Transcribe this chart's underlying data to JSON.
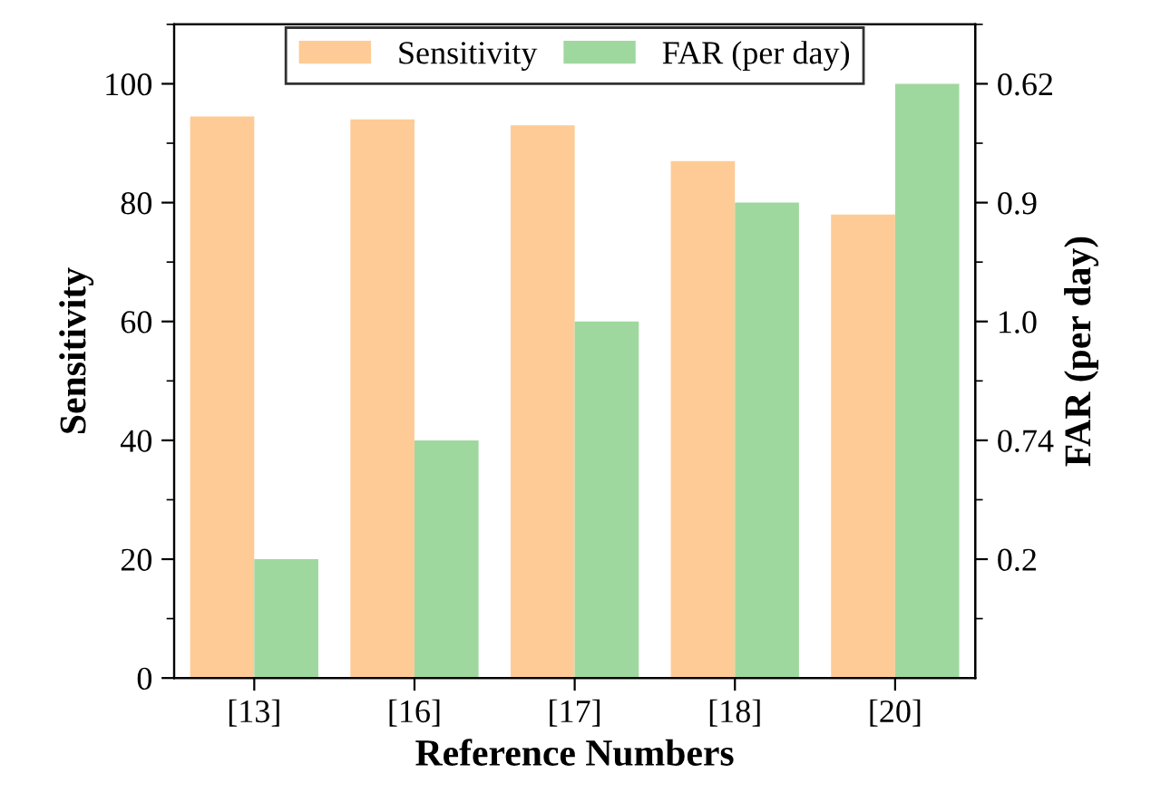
{
  "chart_data": {
    "type": "bar",
    "xlabel": "Reference Numbers",
    "ylabel": "Sensitivity",
    "y2label": "FAR (per day)",
    "categories": [
      "[13]",
      "[16]",
      "[17]",
      "[18]",
      "[20]"
    ],
    "series": [
      {
        "name": "Sensitivity",
        "color": "#fecb96",
        "values": [
          94.5,
          94,
          93,
          87,
          78
        ]
      },
      {
        "name": "FAR (per day)",
        "color": "#9fd89f",
        "values": [
          20,
          40,
          60,
          80,
          100
        ]
      }
    ],
    "ylim": [
      0,
      110
    ],
    "yticks": [
      0,
      20,
      40,
      60,
      80,
      100
    ],
    "annotations": [
      "0.2",
      "0.74",
      "1.0",
      "0.9",
      "0.62"
    ],
    "legend": "top",
    "grid": false
  }
}
